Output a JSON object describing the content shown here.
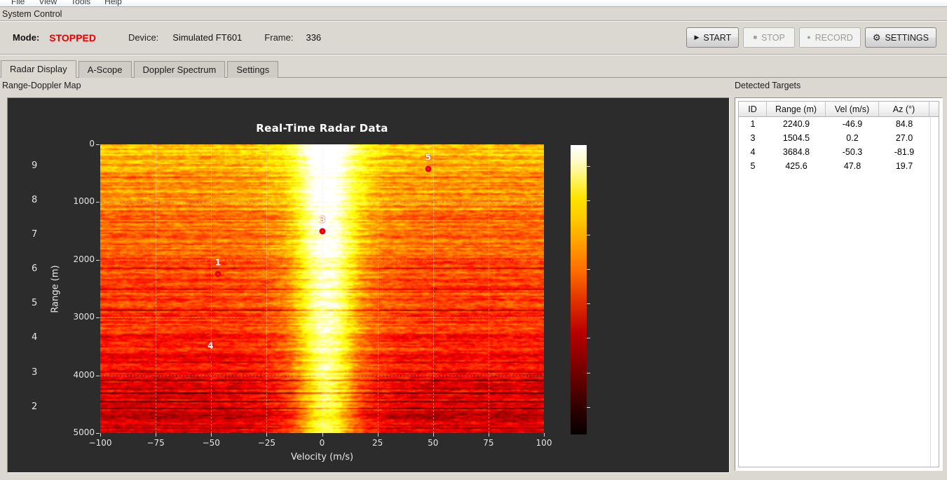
{
  "menu": {
    "items": [
      "File",
      "View",
      "Tools",
      "Help"
    ]
  },
  "system_control": {
    "title": "System Control",
    "mode_label": "Mode:",
    "mode_value": "STOPPED",
    "mode_color": "#e60000",
    "device_label": "Device:",
    "device_value": "Simulated FT601",
    "frame_label": "Frame:",
    "frame_value": "336",
    "buttons": [
      {
        "name": "start-button",
        "icon": "play-icon",
        "glyph": "▶",
        "label": "START",
        "enabled": true
      },
      {
        "name": "stop-button",
        "icon": "stop-icon",
        "glyph": "■",
        "label": "STOP",
        "enabled": false
      },
      {
        "name": "record-button",
        "icon": "record-icon",
        "glyph": "●",
        "label": "RECORD",
        "enabled": false
      },
      {
        "name": "settings-button",
        "icon": "gear-icon",
        "glyph": "⚙",
        "label": "SETTINGS",
        "enabled": true
      }
    ]
  },
  "tabs": [
    {
      "label": "Radar Display",
      "active": true
    },
    {
      "label": "A-Scope",
      "active": false
    },
    {
      "label": "Doppler Spectrum",
      "active": false
    },
    {
      "label": "Settings",
      "active": false
    }
  ],
  "left_panel_label": "Range-Doppler Map",
  "right_panel_label": "Detected Targets",
  "targets_table": {
    "columns": [
      "ID",
      "Range (m)",
      "Vel (m/s)",
      "Az (°)"
    ],
    "rows": [
      [
        "1",
        "2240.9",
        "-46.9",
        "84.8"
      ],
      [
        "3",
        "1504.5",
        "0.2",
        "27.0"
      ],
      [
        "4",
        "3684.8",
        "-50.3",
        "-81.9"
      ],
      [
        "5",
        "425.6",
        "47.8",
        "19.7"
      ]
    ]
  },
  "chart_data": {
    "type": "heatmap",
    "title": "Real-Time Radar Data",
    "xlabel": "Velocity (m/s)",
    "ylabel": "Range (m)",
    "xlim": [
      -100,
      100
    ],
    "ylim": [
      0,
      5000
    ],
    "y_inverted": true,
    "x_ticks": [
      -100,
      -75,
      -50,
      -25,
      0,
      25,
      50,
      75,
      100
    ],
    "y_ticks": [
      0,
      1000,
      2000,
      3000,
      4000,
      5000
    ],
    "grid": true,
    "colormap": "hot",
    "background": "#2c2c2c",
    "colorbar": {
      "vmin": 1.2,
      "vmax": 9.6,
      "ticks": [
        2,
        3,
        4,
        5,
        6,
        7,
        8,
        9
      ]
    },
    "clutter_band": {
      "center_velocity": 2,
      "sigma": 8.5,
      "note": "bright zero-Doppler clutter ridge spanning all ranges; intensity decreases with range"
    },
    "markers": [
      {
        "id": "1",
        "velocity": -46.9,
        "range": 2240.9
      },
      {
        "id": "3",
        "velocity": 0.2,
        "range": 1504.5
      },
      {
        "id": "4",
        "velocity": -50.3,
        "range": 3684.8
      },
      {
        "id": "5",
        "velocity": 47.8,
        "range": 425.6
      }
    ]
  }
}
